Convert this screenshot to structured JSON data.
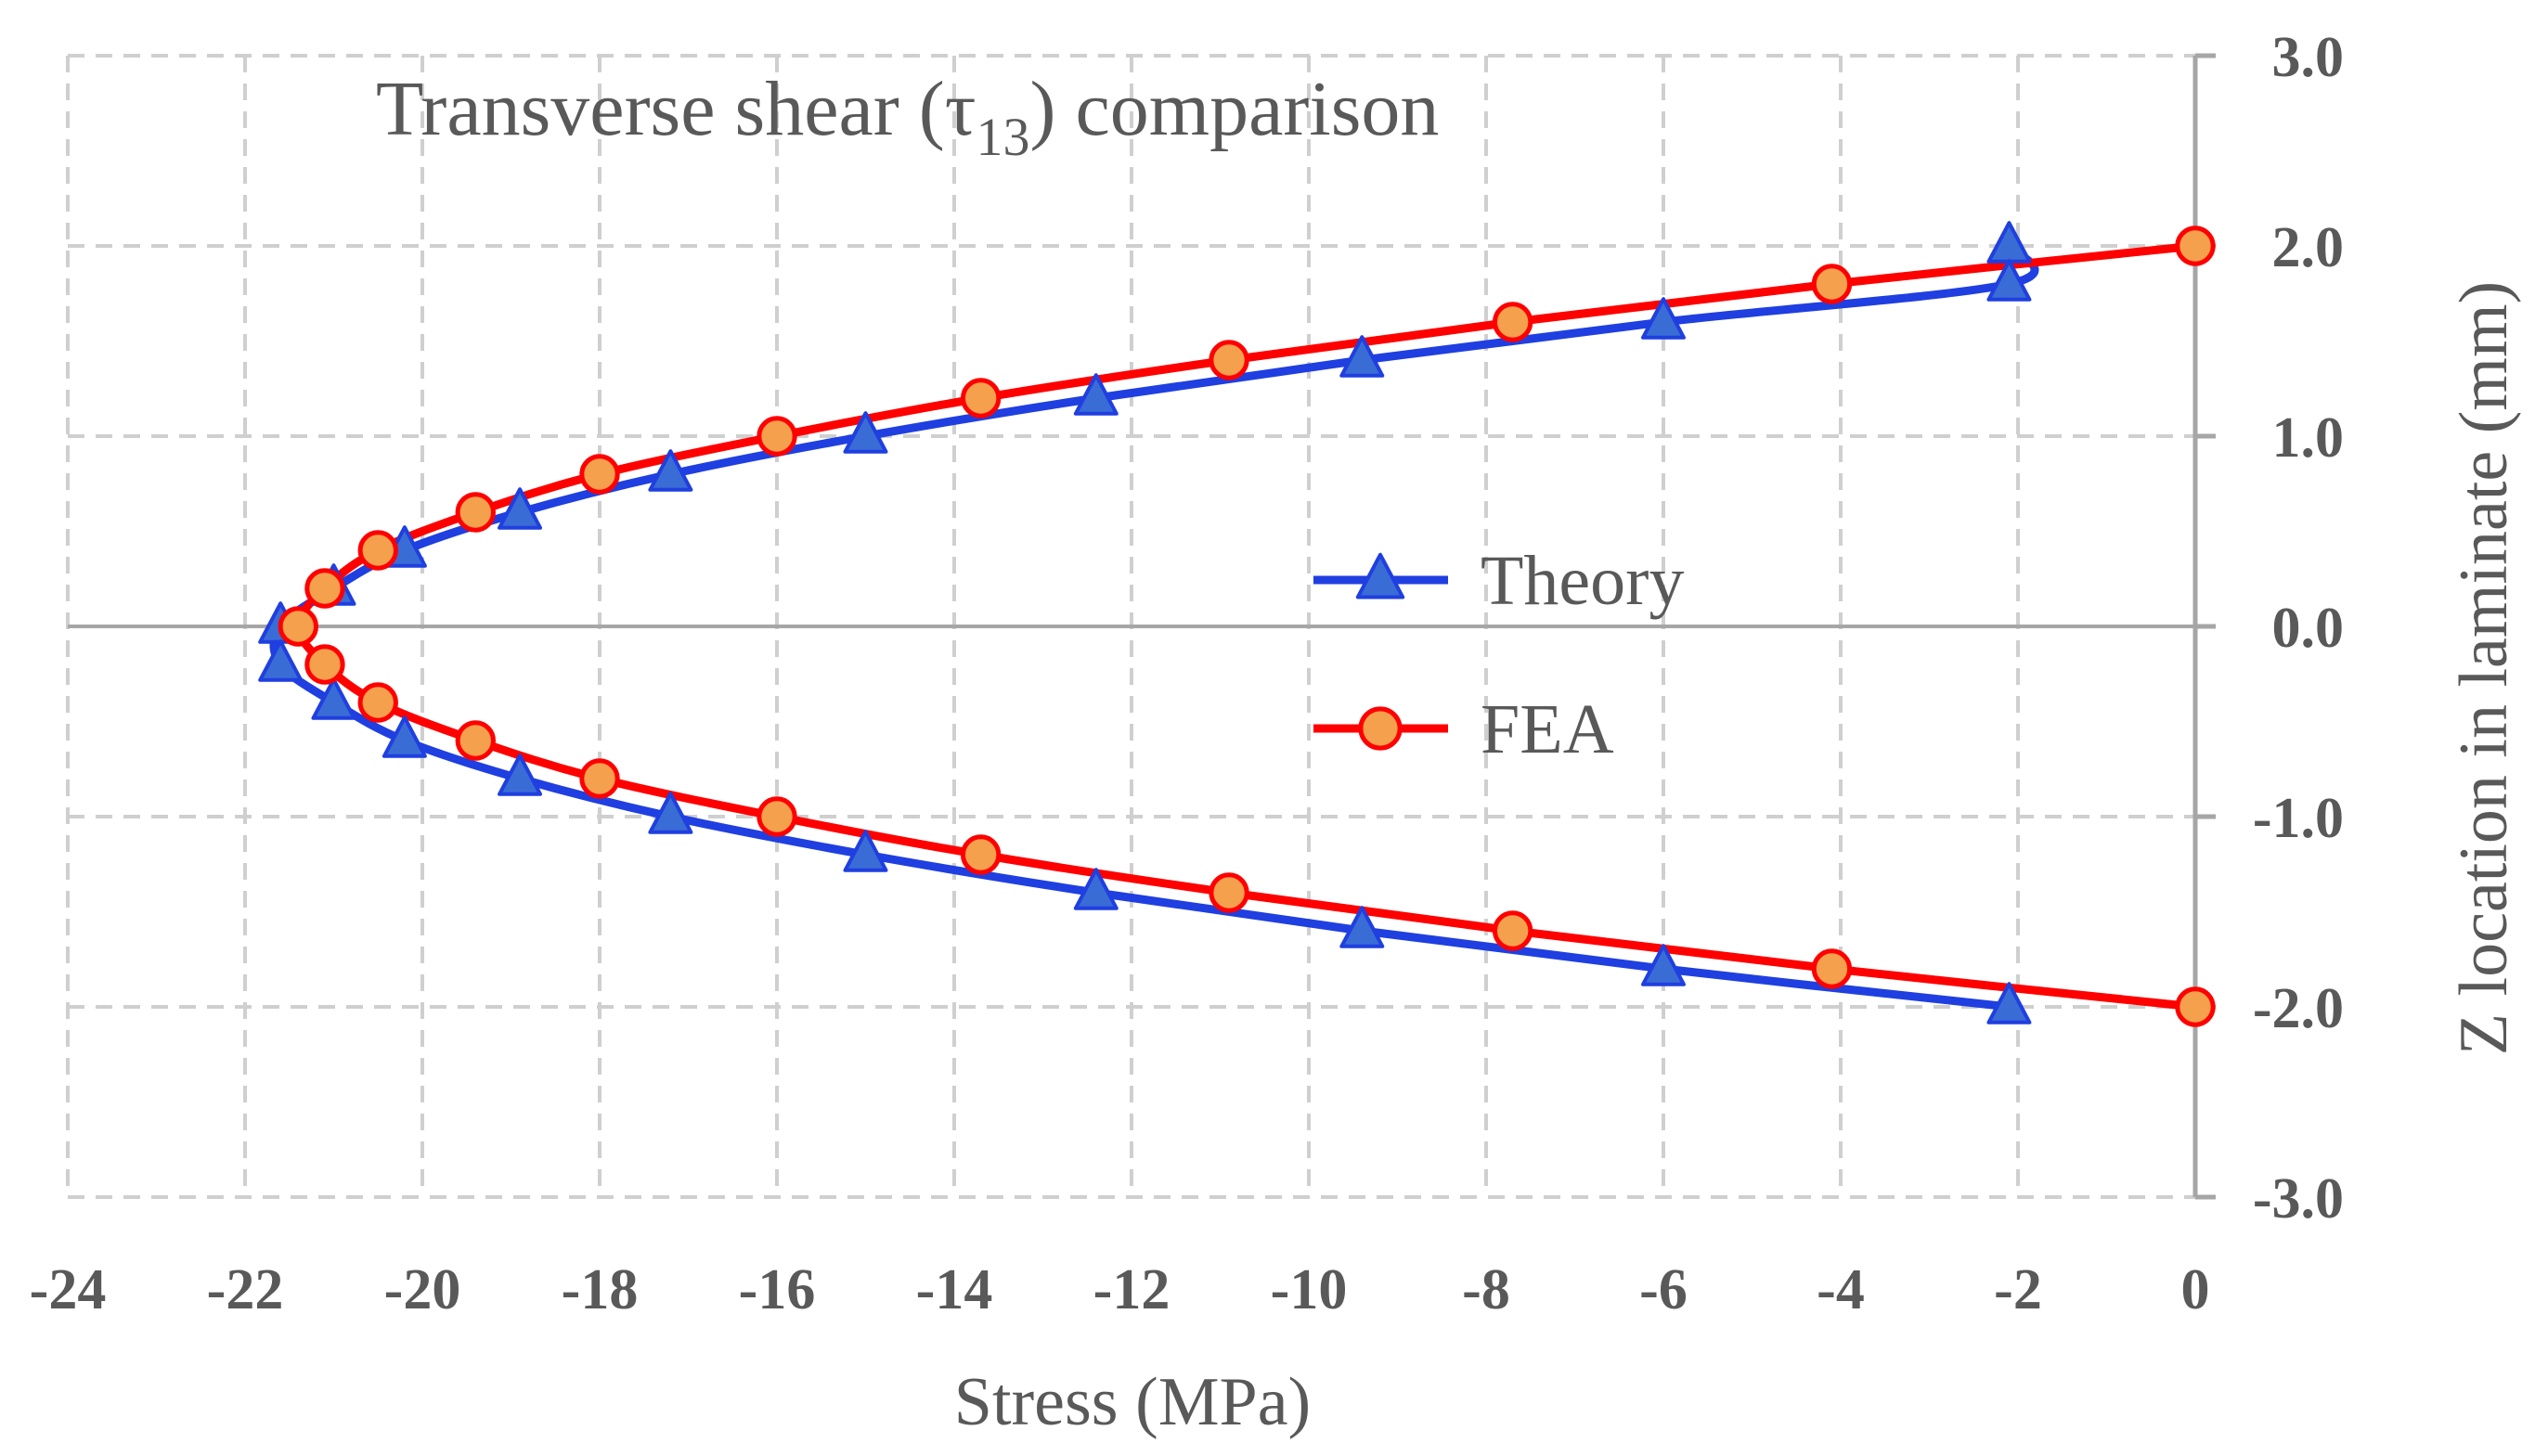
{
  "chart_data": {
    "type": "line",
    "title": {
      "prefix": "Transverse shear (",
      "symbol": "τ",
      "subscript": "13",
      "suffix": ") comparison"
    },
    "xlabel": "Stress (MPa)",
    "ylabel": "Z location in laminate (mm)",
    "xlim": [
      -24,
      0
    ],
    "ylim": [
      -3,
      3
    ],
    "x_ticks": [
      -24,
      -22,
      -20,
      -18,
      -16,
      -14,
      -12,
      -10,
      -8,
      -6,
      -4,
      -2,
      0
    ],
    "y_ticks": [
      3,
      2,
      1,
      0,
      -1,
      -2,
      -3
    ],
    "y_tick_labels": [
      "3.0",
      "2.0",
      "1.0",
      "0.0",
      "-1.0",
      "-2.0",
      "-3.0"
    ],
    "y_axis_position": "right",
    "grid": true,
    "legend_position": "center-right",
    "series": [
      {
        "name": "Theory",
        "marker": "triangle",
        "line_color": "#1f3fe0",
        "marker_fill": "#3a6cd6",
        "marker_edge": "#1f3fe0",
        "points": [
          {
            "x": -2.1,
            "y": 2.0
          },
          {
            "x": -2.1,
            "y": 1.8
          },
          {
            "x": -6.0,
            "y": 1.6
          },
          {
            "x": -9.4,
            "y": 1.4
          },
          {
            "x": -12.4,
            "y": 1.2
          },
          {
            "x": -15.0,
            "y": 1.0
          },
          {
            "x": -17.2,
            "y": 0.8
          },
          {
            "x": -18.9,
            "y": 0.6
          },
          {
            "x": -20.2,
            "y": 0.4
          },
          {
            "x": -21.0,
            "y": 0.2
          },
          {
            "x": -21.6,
            "y": 0.0
          },
          {
            "x": -21.6,
            "y": -0.2
          },
          {
            "x": -21.0,
            "y": -0.4
          },
          {
            "x": -20.2,
            "y": -0.6
          },
          {
            "x": -18.9,
            "y": -0.8
          },
          {
            "x": -17.2,
            "y": -1.0
          },
          {
            "x": -15.0,
            "y": -1.2
          },
          {
            "x": -12.4,
            "y": -1.4
          },
          {
            "x": -9.4,
            "y": -1.6
          },
          {
            "x": -6.0,
            "y": -1.8
          },
          {
            "x": -2.1,
            "y": -2.0
          }
        ]
      },
      {
        "name": "FEA",
        "marker": "circle",
        "line_color": "#ff0000",
        "marker_fill": "#f5a04c",
        "marker_edge": "#ff0000",
        "points": [
          {
            "x": 0.0,
            "y": 2.0
          },
          {
            "x": -4.1,
            "y": 1.8
          },
          {
            "x": -7.7,
            "y": 1.6
          },
          {
            "x": -10.9,
            "y": 1.4
          },
          {
            "x": -13.7,
            "y": 1.2
          },
          {
            "x": -16.0,
            "y": 1.0
          },
          {
            "x": -18.0,
            "y": 0.8
          },
          {
            "x": -19.4,
            "y": 0.6
          },
          {
            "x": -20.5,
            "y": 0.4
          },
          {
            "x": -21.1,
            "y": 0.2
          },
          {
            "x": -21.4,
            "y": 0.0
          },
          {
            "x": -21.1,
            "y": -0.2
          },
          {
            "x": -20.5,
            "y": -0.4
          },
          {
            "x": -19.4,
            "y": -0.6
          },
          {
            "x": -18.0,
            "y": -0.8
          },
          {
            "x": -16.0,
            "y": -1.0
          },
          {
            "x": -13.7,
            "y": -1.2
          },
          {
            "x": -10.9,
            "y": -1.4
          },
          {
            "x": -7.7,
            "y": -1.6
          },
          {
            "x": -4.1,
            "y": -1.8
          },
          {
            "x": 0.0,
            "y": -2.0
          }
        ]
      }
    ]
  }
}
